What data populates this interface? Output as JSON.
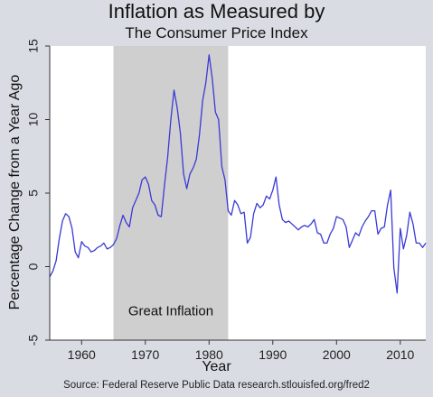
{
  "chart_data": {
    "type": "line",
    "title": "Inflation as Measured by",
    "subtitle": "The Consumer Price Index",
    "xlabel": "Year",
    "ylabel": "Percentage Change from a Year Ago",
    "source": "Source: Federal Reserve Public Data research.stlouisfed.org/fred2",
    "xlim": [
      1955,
      2014
    ],
    "ylim": [
      -5,
      15
    ],
    "xticks": [
      1960,
      1970,
      1980,
      1990,
      2000,
      2010
    ],
    "yticks": [
      -5,
      0,
      5,
      10,
      15
    ],
    "grid": false,
    "shaded_region": {
      "start": 1965,
      "end": 1983,
      "label": "Great Inflation"
    },
    "series": [
      {
        "color": "#3a3ad6",
        "x": [
          1955.0,
          1955.5,
          1956.0,
          1956.5,
          1957.0,
          1957.5,
          1958.0,
          1958.5,
          1959.0,
          1959.5,
          1960.0,
          1960.5,
          1961.0,
          1961.5,
          1962.0,
          1962.5,
          1963.0,
          1963.5,
          1964.0,
          1964.5,
          1965.0,
          1965.5,
          1966.0,
          1966.5,
          1967.0,
          1967.5,
          1968.0,
          1968.5,
          1969.0,
          1969.5,
          1970.0,
          1970.5,
          1971.0,
          1971.5,
          1972.0,
          1972.5,
          1973.0,
          1973.5,
          1974.0,
          1974.5,
          1975.0,
          1975.5,
          1976.0,
          1976.5,
          1977.0,
          1977.5,
          1978.0,
          1978.5,
          1979.0,
          1979.5,
          1980.0,
          1980.5,
          1981.0,
          1981.5,
          1982.0,
          1982.5,
          1983.0,
          1983.5,
          1984.0,
          1984.5,
          1985.0,
          1985.5,
          1986.0,
          1986.5,
          1987.0,
          1987.5,
          1988.0,
          1988.5,
          1989.0,
          1989.5,
          1990.0,
          1990.5,
          1991.0,
          1991.5,
          1992.0,
          1992.5,
          1993.0,
          1993.5,
          1994.0,
          1994.5,
          1995.0,
          1995.5,
          1996.0,
          1996.5,
          1997.0,
          1997.5,
          1998.0,
          1998.5,
          1999.0,
          1999.5,
          2000.0,
          2000.5,
          2001.0,
          2001.5,
          2002.0,
          2002.5,
          2003.0,
          2003.5,
          2004.0,
          2004.5,
          2005.0,
          2005.5,
          2006.0,
          2006.5,
          2007.0,
          2007.5,
          2008.0,
          2008.5,
          2009.0,
          2009.5,
          2010.0,
          2010.5,
          2011.0,
          2011.5,
          2012.0,
          2012.5,
          2013.0,
          2013.5,
          2014.0
        ],
        "y": [
          -0.7,
          -0.3,
          0.4,
          1.9,
          3.1,
          3.6,
          3.4,
          2.6,
          1.0,
          0.6,
          1.7,
          1.4,
          1.3,
          1.0,
          1.1,
          1.3,
          1.4,
          1.6,
          1.2,
          1.3,
          1.5,
          1.9,
          2.8,
          3.5,
          3.0,
          2.7,
          4.0,
          4.5,
          5.0,
          5.9,
          6.1,
          5.6,
          4.5,
          4.2,
          3.5,
          3.4,
          5.5,
          7.4,
          10.0,
          12.0,
          10.8,
          9.1,
          6.3,
          5.3,
          6.3,
          6.7,
          7.3,
          9.0,
          11.3,
          12.5,
          14.4,
          12.8,
          10.5,
          10.0,
          6.8,
          5.9,
          3.8,
          3.5,
          4.5,
          4.2,
          3.6,
          3.7,
          1.6,
          2.0,
          3.6,
          4.3,
          4.0,
          4.2,
          4.8,
          4.6,
          5.2,
          6.1,
          4.2,
          3.2,
          3.0,
          3.1,
          2.9,
          2.7,
          2.5,
          2.7,
          2.8,
          2.7,
          2.9,
          3.2,
          2.3,
          2.2,
          1.6,
          1.6,
          2.2,
          2.6,
          3.4,
          3.3,
          3.2,
          2.7,
          1.3,
          1.8,
          2.3,
          2.1,
          2.7,
          3.1,
          3.4,
          3.8,
          3.8,
          2.2,
          2.6,
          2.7,
          4.2,
          5.2,
          -0.1,
          -1.8,
          2.6,
          1.2,
          2.1,
          3.7,
          2.9,
          1.6,
          1.6,
          1.3,
          1.6
        ]
      }
    ]
  }
}
